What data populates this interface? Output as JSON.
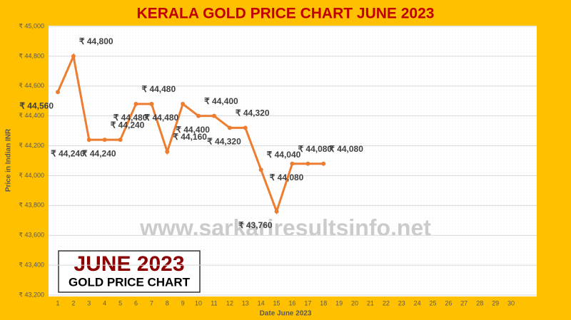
{
  "chart_data": {
    "type": "line",
    "title": "KERALA GOLD PRICE CHART JUNE 2023",
    "y_label": "Price in Indian INR",
    "x_label": "Date June 2023",
    "watermark": "www.sarkariresultsinfo.net",
    "badge": {
      "title": "JUNE 2023",
      "subtitle": "GOLD PRICE CHART"
    },
    "categories": [
      "1",
      "2",
      "3",
      "4",
      "5",
      "6",
      "7",
      "8",
      "9",
      "10",
      "11",
      "12",
      "13",
      "14",
      "15",
      "16",
      "17",
      "18",
      "19",
      "20",
      "21",
      "22",
      "23",
      "24",
      "25",
      "26",
      "27",
      "28",
      "29",
      "30"
    ],
    "series": [
      {
        "name": "Gold price",
        "color": "#ed7d31",
        "values": [
          44560,
          44800,
          44240,
          44240,
          44240,
          44480,
          44480,
          44160,
          44480,
          44400,
          44400,
          44320,
          44320,
          44040,
          43760,
          44080,
          44080,
          44080,
          null,
          null,
          null,
          null,
          null,
          null,
          null,
          null,
          null,
          null,
          null,
          null
        ],
        "value_labels": [
          "₹ 44,560",
          "₹ 44,800",
          "₹ 44,240",
          "₹ 44,240",
          "₹ 44,240",
          "₹ 44,480",
          "₹ 44,480",
          "₹ 44,160",
          "₹ 44,480",
          "₹ 44,400",
          "₹ 44,400",
          "₹ 44,320",
          "₹ 44,320",
          "₹ 44,040",
          "₹ 43,760",
          "₹ 44,080",
          "₹ 44,080",
          "₹ 44,080",
          null,
          null,
          null,
          null,
          null,
          null,
          null,
          null,
          null,
          null,
          null,
          null
        ]
      }
    ],
    "ylim": [
      43200,
      45000
    ],
    "yticks": [
      {
        "value": 43200,
        "label": "₹ 43,200"
      },
      {
        "value": 43400,
        "label": "₹ 43,400"
      },
      {
        "value": 43600,
        "label": "₹ 43,600"
      },
      {
        "value": 43800,
        "label": "₹ 43,800"
      },
      {
        "value": 44000,
        "label": "₹ 44,000"
      },
      {
        "value": 44200,
        "label": "₹ 44,200"
      },
      {
        "value": 44400,
        "label": "₹ 44,400"
      },
      {
        "value": 44600,
        "label": "₹ 44,600"
      },
      {
        "value": 44800,
        "label": "₹ 44,800"
      },
      {
        "value": 45000,
        "label": "₹ 45,000"
      }
    ],
    "grid": true
  }
}
